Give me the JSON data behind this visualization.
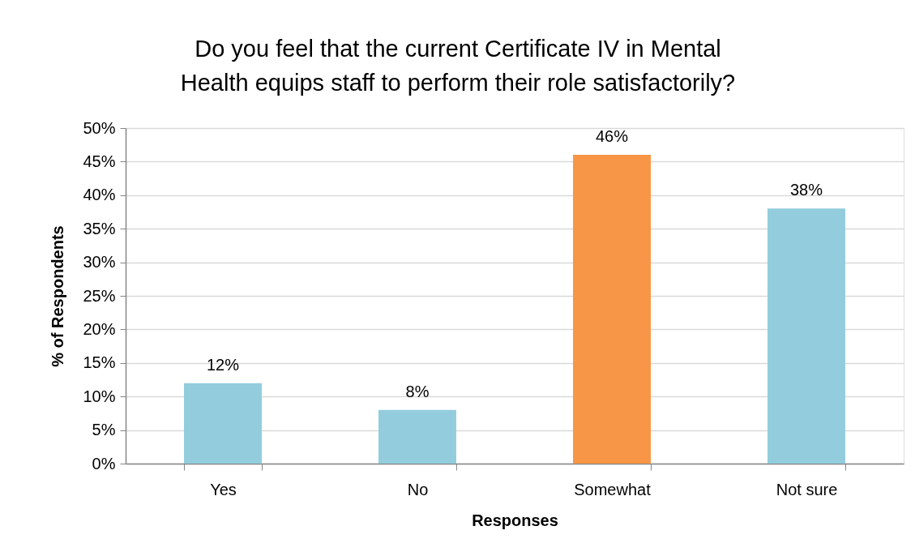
{
  "chart_data": {
    "type": "bar",
    "title": [
      "Do you feel that the current Certificate IV in Mental",
      "Health equips staff to perform their role satisfactorily?"
    ],
    "xlabel": "Responses",
    "ylabel": "% of Respondents",
    "categories": [
      "Yes",
      "No",
      "Somewhat",
      "Not sure"
    ],
    "values": [
      12,
      8,
      46,
      38
    ],
    "colors": [
      "#93cddd",
      "#93cddd",
      "#f79646",
      "#93cddd"
    ],
    "value_labels": [
      "12%",
      "8%",
      "46%",
      "38%"
    ],
    "ylim": [
      0,
      50
    ],
    "yticks": [
      {
        "value": 0,
        "label": "0%"
      },
      {
        "value": 5,
        "label": "5%"
      },
      {
        "value": 10,
        "label": "10%"
      },
      {
        "value": 15,
        "label": "15%"
      },
      {
        "value": 20,
        "label": "20%"
      },
      {
        "value": 25,
        "label": "25%"
      },
      {
        "value": 30,
        "label": "30%"
      },
      {
        "value": 35,
        "label": "35%"
      },
      {
        "value": 40,
        "label": "40%"
      },
      {
        "value": 45,
        "label": "45%"
      },
      {
        "value": 50,
        "label": "50%"
      }
    ],
    "grid": "y"
  }
}
